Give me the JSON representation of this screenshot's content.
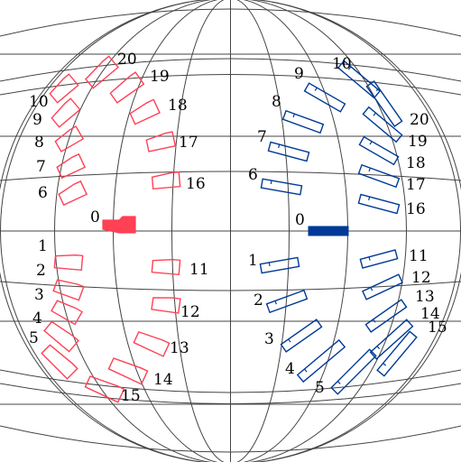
{
  "colors": {
    "left_group": "#ff4055",
    "right_group": "#003a96",
    "grid": "#444444",
    "background": "#ffffff"
  },
  "left_group": {
    "origin_label": "0",
    "labels": [
      "1",
      "2",
      "3",
      "4",
      "5",
      "6",
      "7",
      "8",
      "9",
      "10",
      "11",
      "12",
      "13",
      "14",
      "15",
      "16",
      "17",
      "18",
      "19",
      "20"
    ]
  },
  "right_group": {
    "origin_label": "0",
    "labels": [
      "1",
      "2",
      "3",
      "4",
      "5",
      "6",
      "7",
      "8",
      "9",
      "10",
      "11",
      "12",
      "13",
      "14",
      "15",
      "16",
      "17",
      "18",
      "19",
      "20"
    ]
  }
}
